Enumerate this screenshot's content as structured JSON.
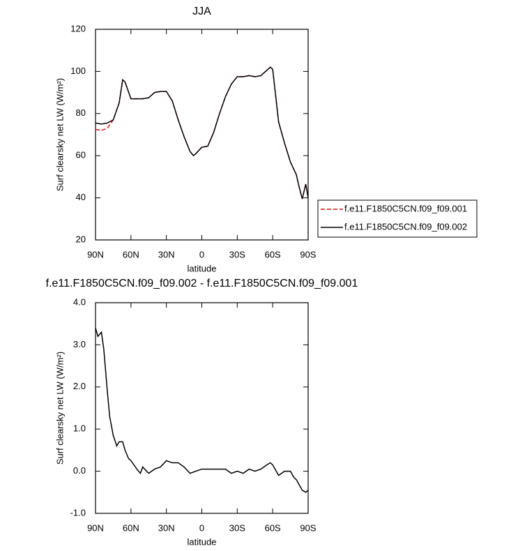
{
  "chart_data": [
    {
      "type": "line",
      "title": "JJA",
      "xlabel": "latitude",
      "ylabel": "Surf clearsky net LW (W/m²)",
      "x": [
        90,
        85,
        80,
        75,
        70,
        67,
        65,
        60,
        55,
        50,
        45,
        40,
        35,
        30,
        25,
        20,
        15,
        10,
        7,
        5,
        0,
        -5,
        -10,
        -15,
        -20,
        -25,
        -30,
        -35,
        -40,
        -45,
        -50,
        -55,
        -58,
        -60,
        -65,
        -70,
        -75,
        -80,
        -82,
        -85,
        -88,
        -90
      ],
      "series": [
        {
          "name": "f.e11.F1850C5CN.f09_f09.001",
          "color": "#e01010",
          "dash": true,
          "values": [
            72.5,
            72,
            73,
            77,
            85,
            96,
            95,
            87,
            87,
            87,
            87.5,
            90,
            90.5,
            90.5,
            86,
            77,
            69,
            62,
            60,
            61,
            64,
            64.5,
            71,
            80,
            88,
            94,
            97.5,
            97.5,
            98,
            97.5,
            98,
            100.5,
            102,
            101,
            76,
            66,
            57,
            51,
            46,
            39.5,
            46.5,
            40
          ]
        },
        {
          "name": "f.e11.F1850C5CN.f09_f09.002",
          "color": "#000000",
          "dash": false,
          "values": [
            75.5,
            75,
            75.5,
            77,
            85,
            96,
            95,
            87,
            87,
            87,
            87.5,
            90,
            90.5,
            90.5,
            86,
            77,
            69,
            62,
            60,
            61,
            64,
            64.5,
            71,
            80,
            88,
            94,
            97.5,
            97.5,
            98,
            97.5,
            98,
            100.5,
            102,
            101,
            76,
            66,
            57,
            51,
            46,
            39.5,
            46.5,
            40
          ]
        }
      ],
      "xlim": [
        90,
        -90
      ],
      "xticks": [
        {
          "value": 90,
          "label": "90N"
        },
        {
          "value": 60,
          "label": "60N"
        },
        {
          "value": 30,
          "label": "30N"
        },
        0,
        {
          "value": -30,
          "label": "30S"
        },
        {
          "value": -60,
          "label": "60S"
        },
        {
          "value": -90,
          "label": "90S"
        }
      ],
      "ylim": [
        20,
        120
      ],
      "yticks": [
        20,
        40,
        60,
        80,
        100,
        120
      ],
      "legend": "right"
    },
    {
      "type": "line",
      "title": "f.e11.F1850C5CN.f09_f09.002 - f.e11.F1850C5CN.f09_f09.001",
      "xlabel": "latitude",
      "ylabel": "Surf clearsky net LW (W/m²)",
      "x": [
        90,
        88,
        85,
        83,
        80,
        78,
        75,
        72,
        70,
        67,
        65,
        62,
        60,
        55,
        52,
        50,
        45,
        40,
        35,
        30,
        25,
        20,
        15,
        10,
        5,
        0,
        -5,
        -10,
        -15,
        -20,
        -25,
        -30,
        -35,
        -40,
        -45,
        -50,
        -55,
        -58,
        -60,
        -63,
        -65,
        -70,
        -75,
        -78,
        -80,
        -83,
        -85,
        -88,
        -90
      ],
      "series": [
        {
          "color": "#000000",
          "dash": false,
          "values": [
            3.4,
            3.2,
            3.3,
            2.9,
            1.9,
            1.3,
            0.85,
            0.6,
            0.7,
            0.7,
            0.5,
            0.3,
            0.25,
            0.05,
            -0.05,
            0.1,
            -0.05,
            0.05,
            0.1,
            0.25,
            0.2,
            0.2,
            0.1,
            -0.05,
            0,
            0.05,
            0.05,
            0.05,
            0.05,
            0.05,
            -0.05,
            0,
            -0.05,
            0.05,
            0,
            0.05,
            0.15,
            0.2,
            0.15,
            0,
            -0.1,
            0,
            0,
            -0.15,
            -0.2,
            -0.35,
            -0.45,
            -0.5,
            -0.45
          ]
        }
      ],
      "xlim": [
        90,
        -90
      ],
      "xticks": [
        {
          "value": 90,
          "label": "90N"
        },
        {
          "value": 60,
          "label": "60N"
        },
        {
          "value": 30,
          "label": "30N"
        },
        0,
        {
          "value": -30,
          "label": "30S"
        },
        {
          "value": -60,
          "label": "60S"
        },
        {
          "value": -90,
          "label": "90S"
        }
      ],
      "ylim": [
        -1,
        4
      ],
      "yticks": [
        {
          "value": -1,
          "label": "-1.0"
        },
        {
          "value": 0,
          "label": "0.0"
        },
        {
          "value": 1,
          "label": "1.0"
        },
        {
          "value": 2,
          "label": "2.0"
        },
        {
          "value": 3,
          "label": "3.0"
        },
        {
          "value": 4,
          "label": "4.0"
        }
      ]
    }
  ]
}
